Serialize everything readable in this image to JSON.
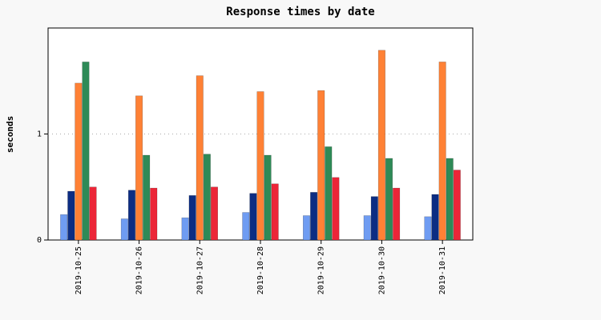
{
  "chart_data": {
    "type": "bar",
    "title": "Response times by date",
    "xlabel": "",
    "ylabel": "seconds",
    "categories": [
      "2019-10-25",
      "2019-10-26",
      "2019-10-27",
      "2019-10-28",
      "2019-10-29",
      "2019-10-30",
      "2019-10-31"
    ],
    "yticks": [
      0,
      1
    ],
    "ylim": [
      0,
      2.0
    ],
    "grid": {
      "y": true,
      "style": "dotted"
    },
    "legend": "none",
    "series": [
      {
        "color": "#6f9cf2",
        "values": [
          0.24,
          0.2,
          0.21,
          0.26,
          0.23,
          0.23,
          0.22
        ]
      },
      {
        "color": "#0c2d83",
        "values": [
          0.46,
          0.47,
          0.42,
          0.44,
          0.45,
          0.41,
          0.43
        ]
      },
      {
        "color": "#ff8135",
        "values": [
          1.48,
          1.36,
          1.55,
          1.4,
          1.41,
          1.79,
          1.68
        ]
      },
      {
        "color": "#2e8a57",
        "values": [
          1.68,
          0.8,
          0.81,
          0.8,
          0.88,
          0.77,
          0.77
        ]
      },
      {
        "color": "#ec2638",
        "values": [
          0.5,
          0.49,
          0.5,
          0.53,
          0.59,
          0.49,
          0.66
        ]
      }
    ]
  }
}
